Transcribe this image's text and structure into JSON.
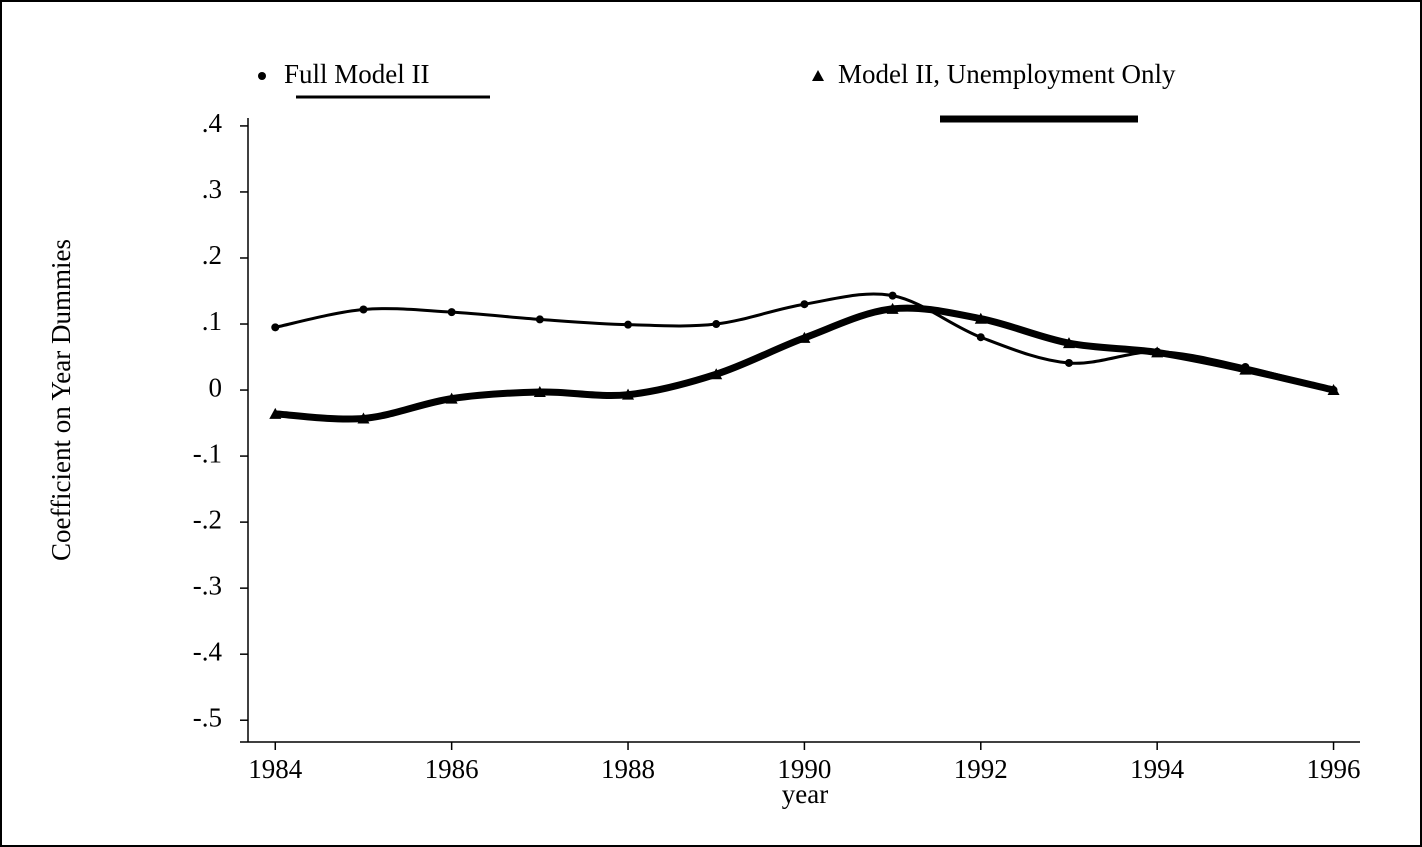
{
  "chart_data": {
    "type": "line",
    "y_label": "Coefficient on Year Dummies",
    "x_label": "year",
    "x": [
      1984,
      1985,
      1986,
      1987,
      1988,
      1989,
      1990,
      1991,
      1992,
      1993,
      1994,
      1995,
      1996
    ],
    "series": [
      {
        "name": "Full Model II",
        "color": "#000000",
        "marker": "circle",
        "line_width": 3,
        "values": [
          0.095,
          0.122,
          0.118,
          0.107,
          0.099,
          0.1,
          0.13,
          0.143,
          0.08,
          0.041,
          0.058,
          0.035,
          0.0
        ]
      },
      {
        "name": "Model II, Unemployment Only",
        "color": "#000000",
        "marker": "triangle",
        "line_width": 7,
        "values": [
          -0.036,
          -0.043,
          -0.013,
          -0.003,
          -0.007,
          0.024,
          0.079,
          0.123,
          0.108,
          0.071,
          0.057,
          0.031,
          0.0
        ]
      }
    ],
    "xlim": [
      1983.6,
      1996.3
    ],
    "ylim": [
      -0.533,
      0.412
    ],
    "xticks": [
      1984,
      1986,
      1988,
      1990,
      1992,
      1994,
      1996
    ],
    "yticks": [
      {
        "value": 0.4,
        "label": ".4"
      },
      {
        "value": 0.3,
        "label": ".3"
      },
      {
        "value": 0.2,
        "label": ".2"
      },
      {
        "value": 0.1,
        "label": ".1"
      },
      0,
      {
        "value": -0.1,
        "label": "-.1"
      },
      {
        "value": -0.2,
        "label": "-.2"
      },
      {
        "value": -0.3,
        "label": "-.3"
      },
      {
        "value": -0.4,
        "label": "-.4"
      },
      {
        "value": -0.5,
        "label": "-.5"
      }
    ],
    "grid": false
  }
}
